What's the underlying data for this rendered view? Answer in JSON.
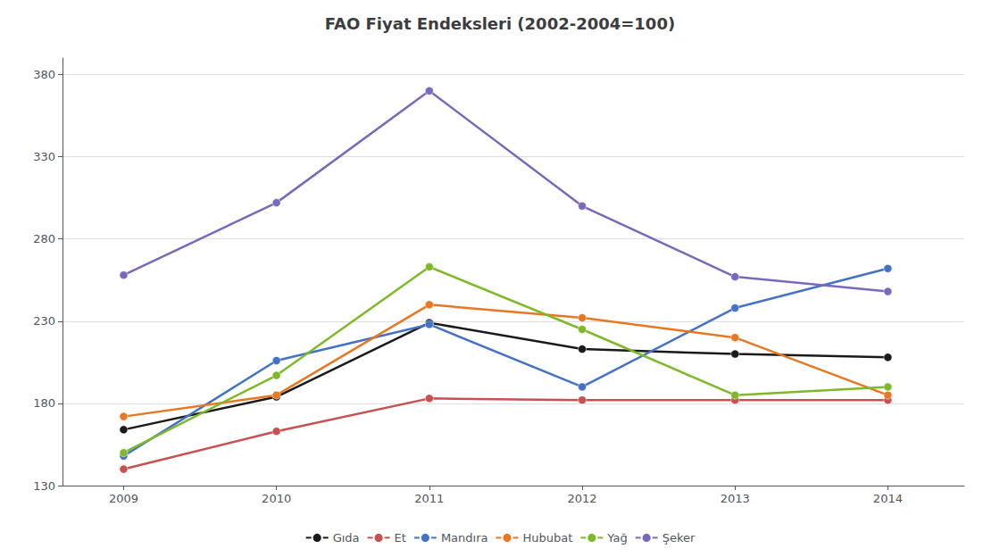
{
  "chart_data": {
    "type": "line",
    "title": "FAO Fiyat Endeksleri (2002-2004=100)",
    "x": [
      2009,
      2010,
      2011,
      2012,
      2013,
      2014
    ],
    "series": [
      {
        "name": "Gıda",
        "color": "#1a1a1a",
        "values": [
          164,
          184,
          229,
          213,
          210,
          208
        ]
      },
      {
        "name": "Et",
        "color": "#c85050",
        "values": [
          140,
          163,
          183,
          182,
          182,
          182
        ]
      },
      {
        "name": "Mandıra",
        "color": "#4472c4",
        "values": [
          148,
          206,
          228,
          190,
          238,
          262
        ]
      },
      {
        "name": "Hububat",
        "color": "#e87722",
        "values": [
          172,
          185,
          240,
          232,
          220,
          185
        ]
      },
      {
        "name": "Yağ",
        "color": "#7db928",
        "values": [
          150,
          197,
          263,
          225,
          185,
          190
        ]
      },
      {
        "name": "Şeker",
        "color": "#7b68bb",
        "values": [
          258,
          302,
          370,
          300,
          257,
          248
        ]
      }
    ],
    "xlim": [
      2008.6,
      2014.5
    ],
    "xticks": [
      2009,
      2010,
      2011,
      2012,
      2013,
      2014
    ],
    "ylim": [
      130,
      390
    ],
    "yticks": [
      130,
      180,
      230,
      280,
      330,
      380
    ],
    "grid": true,
    "legend": "bottom",
    "marker": "circle"
  }
}
